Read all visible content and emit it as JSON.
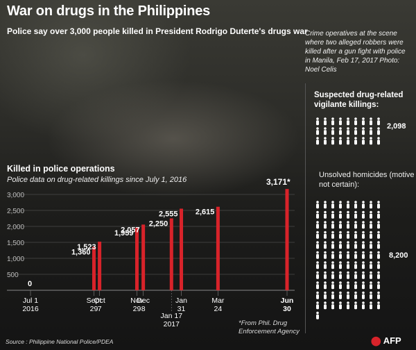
{
  "title": "War on drugs in the Philippines",
  "subtitle": "Police say over 3,000 people killed in President Rodrigo Duterte's drugs war",
  "photo_caption": "Crime operatives at the scene where two alleged robbers were killed after a gun fight with police in Manila, Feb 17, 2017 Photo: Noel Celis",
  "source": "Source : Philippine National Police/PDEA",
  "footnote": "*From Phil. Drug Enforcement Agency",
  "logo": "AFP",
  "colors": {
    "bar": "#d8232a",
    "icon": "#ffffff",
    "grid": "#4a4a4a"
  },
  "side_panel": {
    "vigilante": {
      "title": "Suspected drug-related vigilante killings:",
      "value": "2,098",
      "icon": "person-icon"
    },
    "unsolved": {
      "title": "Unsolved homicides (motive not certain):",
      "value": "8,200",
      "icon": "person-icon"
    }
  },
  "chart_data": {
    "type": "bar",
    "title": "Killed in police operations",
    "subtitle": "Police data on drug-related killings since July 1, 2016",
    "ylim": [
      0,
      3000
    ],
    "yticks": [
      "3,000",
      "2,500",
      "2,000",
      "1,500",
      "1,000",
      "500",
      "0"
    ],
    "points": [
      {
        "date": "2016-07-01",
        "value": 0,
        "label": "0"
      },
      {
        "date": "2016-09-29",
        "value": 1360,
        "label": "1,360"
      },
      {
        "date": "2016-10-07",
        "value": 1523,
        "label": "1,523"
      },
      {
        "date": "2016-11-29",
        "value": 1959,
        "label": "1,959"
      },
      {
        "date": "2016-12-08",
        "value": 2057,
        "label": "2,057"
      },
      {
        "date": "2017-01-17",
        "value": 2250,
        "label": "2,250"
      },
      {
        "date": "2017-01-31",
        "value": 2555,
        "label": "2,555"
      },
      {
        "date": "2017-03-24",
        "value": 2615,
        "label": "2,615"
      },
      {
        "date": "2017-06-30",
        "value": 3171,
        "label": "3,171*"
      }
    ],
    "xlabels": [
      {
        "date": "2016-07-01",
        "line1": "Jul 1",
        "line2": "2016"
      },
      {
        "date": "2016-09-29",
        "line1": "Sept",
        "line2": "29"
      },
      {
        "date": "2016-10-07",
        "line1": "Oct",
        "line2": "7"
      },
      {
        "date": "2016-11-29",
        "line1": "Nov",
        "line2": "29"
      },
      {
        "date": "2016-12-08",
        "line1": "Dec",
        "line2": "8"
      },
      {
        "date": "2017-01-17",
        "line1": "Jan 17",
        "line2": "2017"
      },
      {
        "date": "2017-01-31",
        "line1": "Jan",
        "line2": "31"
      },
      {
        "date": "2017-03-24",
        "line1": "Mar",
        "line2": "24"
      },
      {
        "date": "2017-06-30",
        "line1": "Jun",
        "line2": "30"
      }
    ]
  }
}
